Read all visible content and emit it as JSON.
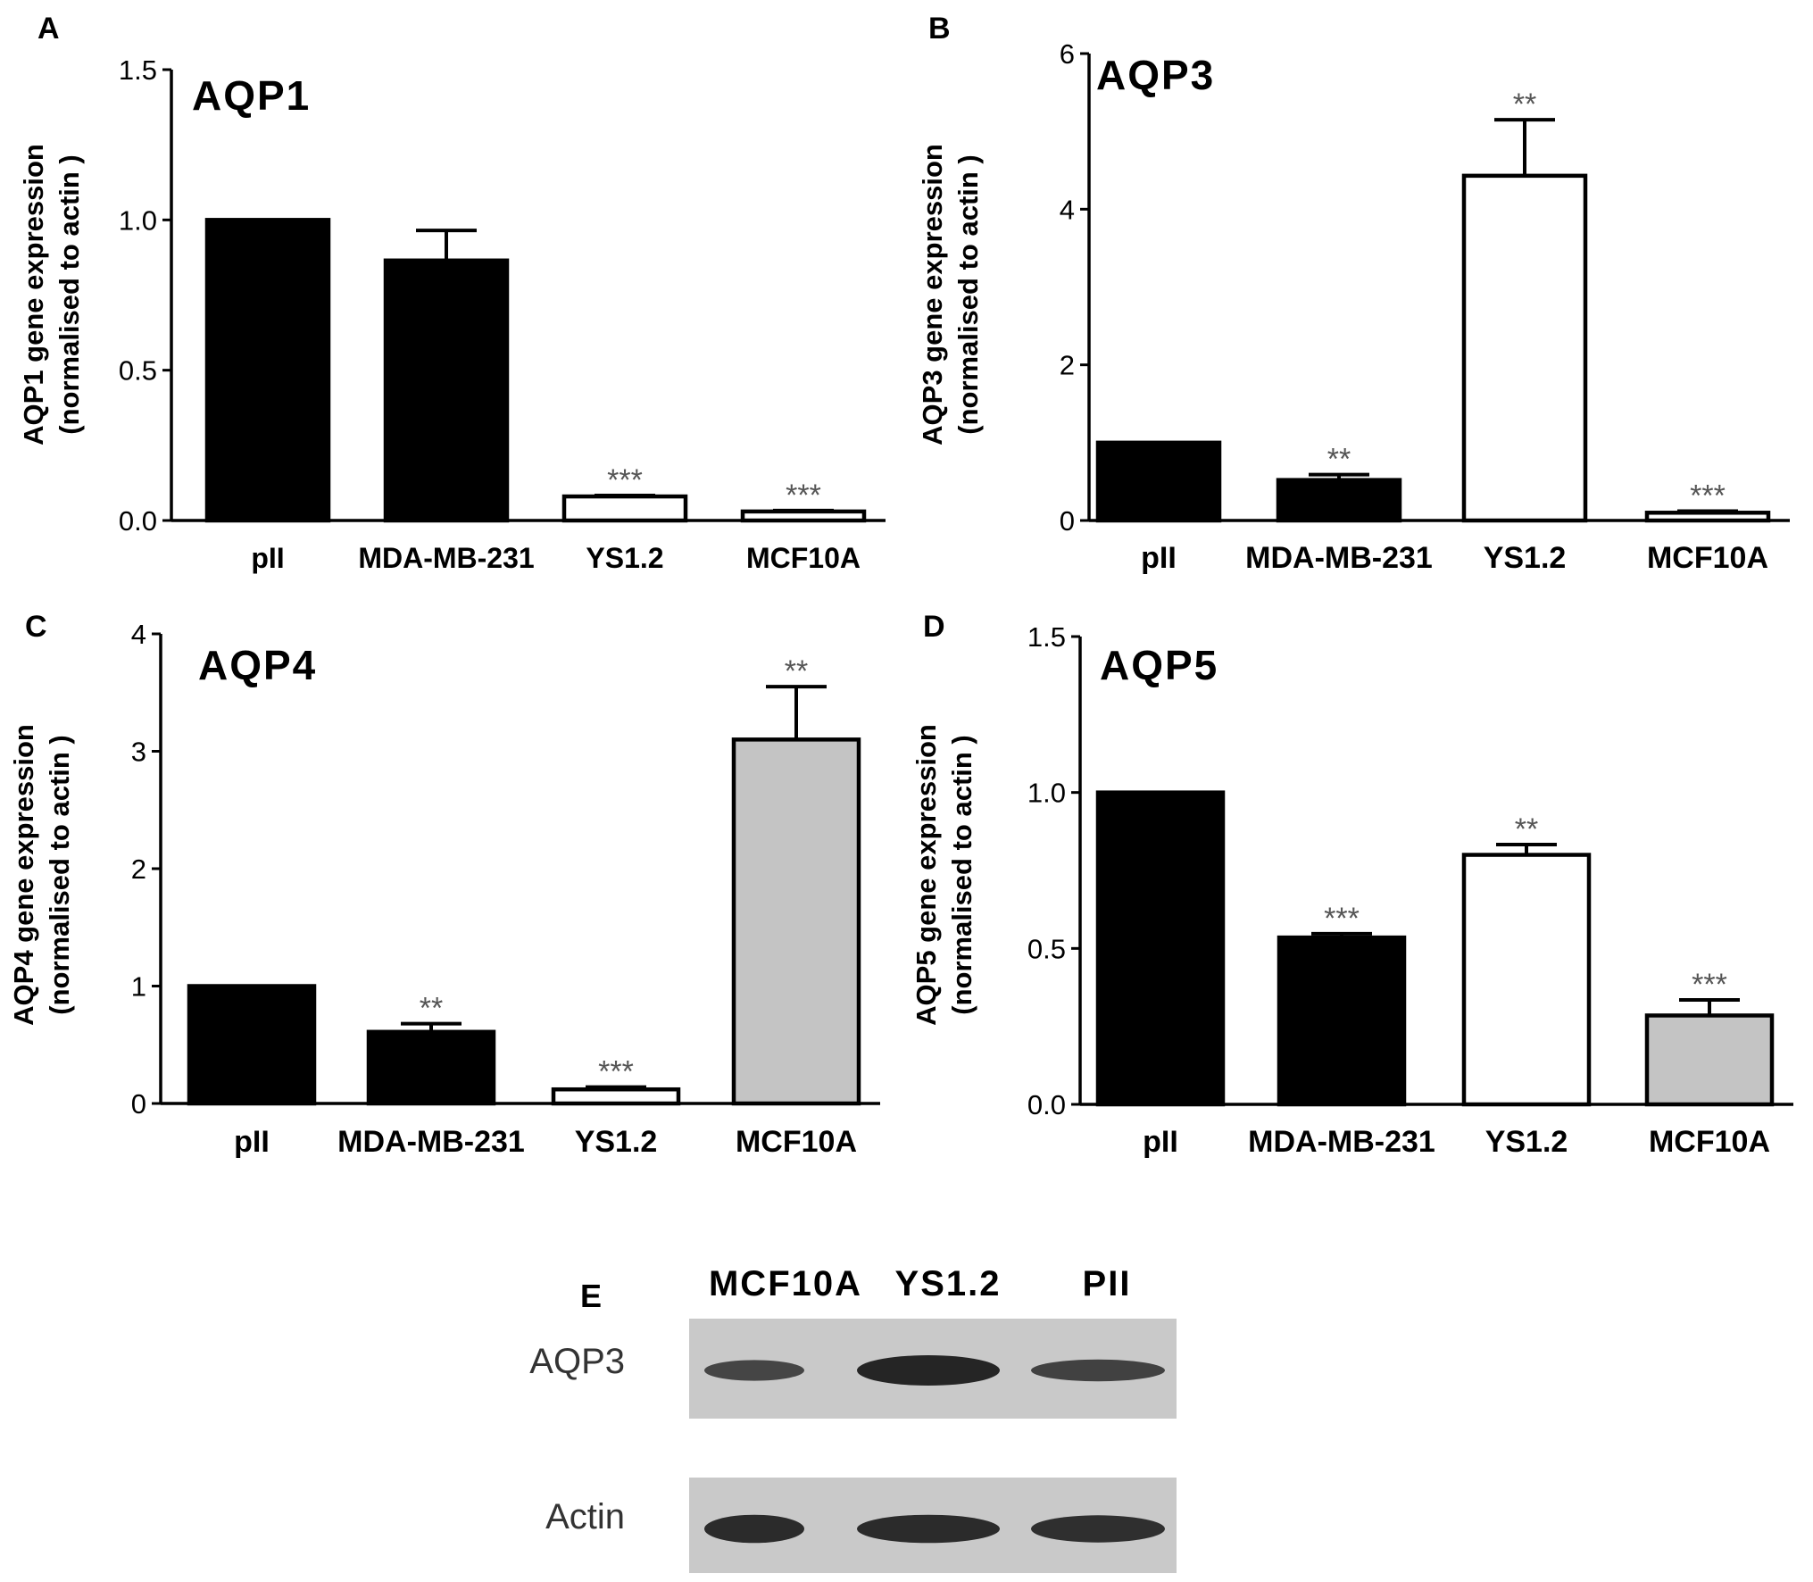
{
  "colors": {
    "black": "#000000",
    "white": "#ffffff",
    "gray": "#c4c4c4",
    "annotation": "#555555",
    "blot_bg": "#c9c9c9",
    "band": "#1c1c1c"
  },
  "chart_data": [
    {
      "panel_letter": "A",
      "type": "bar",
      "title": "AQP1",
      "ylabel_line1": "AQP1  gene expression",
      "ylabel_line2": "(normalised to actin )",
      "ylim": [
        0,
        1.5
      ],
      "yticks": [
        "0.0",
        "0.5",
        "1.0",
        "1.5"
      ],
      "ytick_values": [
        0,
        0.5,
        1.0,
        1.5
      ],
      "categories": [
        "pII",
        "MDA-MB-231",
        "YS1.2",
        "MCF10A"
      ],
      "values": [
        1.0,
        0.865,
        0.08,
        0.03
      ],
      "errors": [
        0.0,
        0.1,
        0.003,
        0.003
      ],
      "fills": [
        "black",
        "black",
        "white",
        "white"
      ],
      "annotations": [
        "",
        "",
        "***",
        "***"
      ],
      "grid": false
    },
    {
      "panel_letter": "B",
      "type": "bar",
      "title": "AQP3",
      "ylabel_line1": "AQP3  gene expression",
      "ylabel_line2": "(normalised to actin )",
      "ylim": [
        0,
        6
      ],
      "yticks": [
        "0",
        "2",
        "4",
        "6"
      ],
      "ytick_values": [
        0,
        2,
        4,
        6
      ],
      "categories": [
        "pII",
        "MDA-MB-231",
        "YS1.2",
        "MCF10A"
      ],
      "values": [
        1.0,
        0.52,
        4.43,
        0.1
      ],
      "errors": [
        0.0,
        0.07,
        0.72,
        0.02
      ],
      "fills": [
        "black",
        "black",
        "white",
        "white"
      ],
      "annotations": [
        "",
        "**",
        "**",
        "***"
      ],
      "grid": false
    },
    {
      "panel_letter": "C",
      "type": "bar",
      "title": "AQP4",
      "ylabel_line1": "AQP4 gene expression",
      "ylabel_line2": "(normalised to actin )",
      "ylim": [
        0,
        4
      ],
      "yticks": [
        "0",
        "1",
        "2",
        "3",
        "4"
      ],
      "ytick_values": [
        0,
        1,
        2,
        3,
        4
      ],
      "categories": [
        "pII",
        "MDA-MB-231",
        "YS1.2",
        "MCF10A"
      ],
      "values": [
        1.0,
        0.61,
        0.12,
        3.1
      ],
      "errors": [
        0.0,
        0.07,
        0.02,
        0.45
      ],
      "fills": [
        "black",
        "black",
        "white",
        "gray"
      ],
      "annotations": [
        "",
        "**",
        "***",
        "**"
      ],
      "grid": false
    },
    {
      "panel_letter": "D",
      "type": "bar",
      "title": "AQP5",
      "ylabel_line1": "AQP5  gene expression",
      "ylabel_line2": "(normalised to actin )",
      "ylim": [
        0,
        1.5
      ],
      "yticks": [
        "0.0",
        "0.5",
        "1.0",
        "1.5"
      ],
      "ytick_values": [
        0,
        0.5,
        1.0,
        1.5
      ],
      "categories": [
        "pII",
        "MDA-MB-231",
        "YS1.2",
        "MCF10A"
      ],
      "values": [
        1.0,
        0.535,
        0.8,
        0.285
      ],
      "errors": [
        0.0,
        0.012,
        0.033,
        0.05
      ],
      "fills": [
        "black",
        "black",
        "white",
        "gray"
      ],
      "annotations": [
        "",
        "***",
        "**",
        "***"
      ],
      "grid": false
    }
  ],
  "blot": {
    "panel_letter": "E",
    "lanes": [
      "MCF10A",
      "YS1.2",
      "PII"
    ],
    "rows": [
      {
        "label": "AQP3",
        "band_intensity": [
          0.55,
          1.0,
          0.6
        ]
      },
      {
        "label": "Actin",
        "band_intensity": [
          0.9,
          0.9,
          0.85
        ]
      }
    ]
  }
}
